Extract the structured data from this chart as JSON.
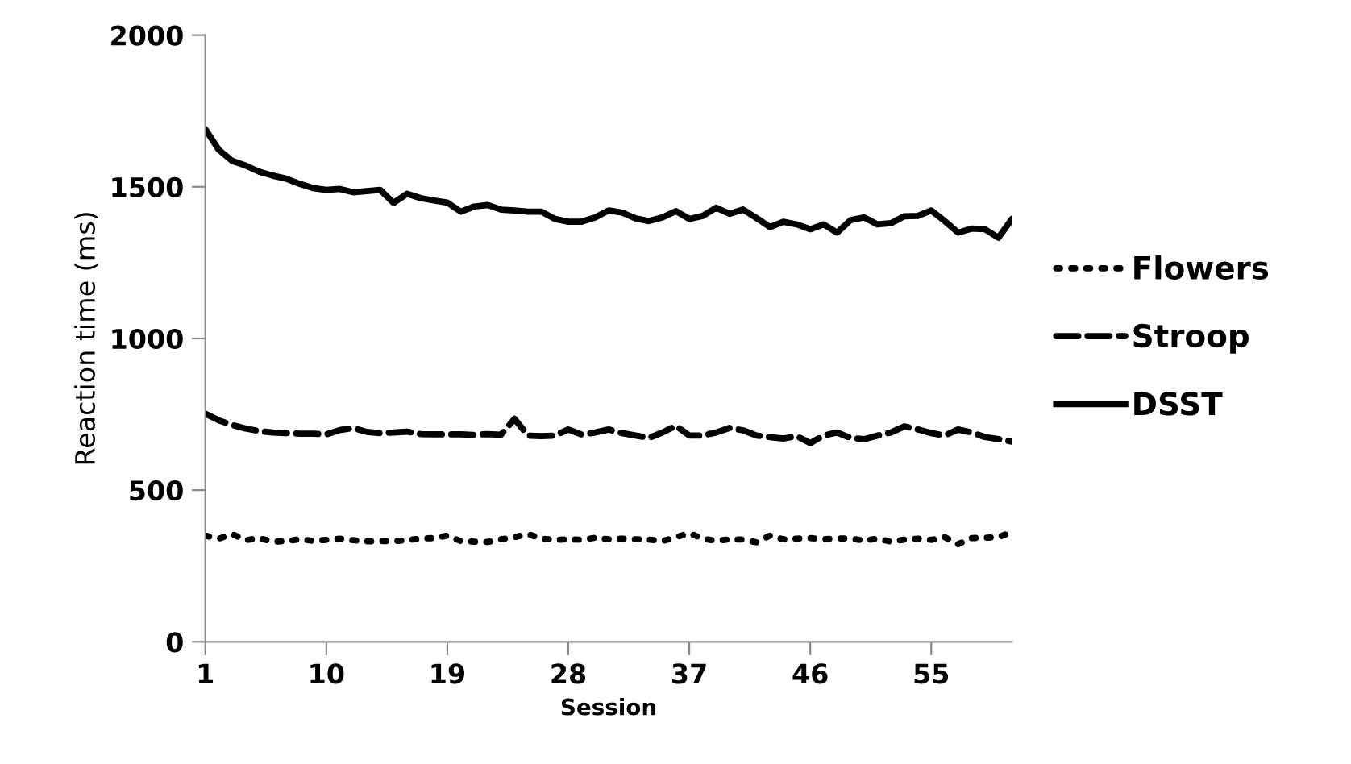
{
  "chart_data": {
    "type": "line",
    "xlabel": "Session",
    "ylabel": "Reaction time (ms)",
    "categories": [
      "1",
      null,
      null,
      null,
      null,
      null,
      null,
      null,
      null,
      "10",
      null,
      null,
      null,
      null,
      null,
      null,
      null,
      null,
      "19",
      null,
      null,
      null,
      null,
      null,
      null,
      null,
      null,
      "28",
      null,
      null,
      null,
      null,
      null,
      null,
      null,
      null,
      "37",
      null,
      null,
      null,
      null,
      null,
      null,
      null,
      null,
      "46",
      null,
      null,
      null,
      null,
      null,
      null,
      null,
      null,
      "55",
      null,
      null,
      null,
      null,
      null,
      null
    ],
    "ylim": [
      0,
      2000
    ],
    "yticks": [
      0,
      500,
      1000,
      1500,
      2000
    ],
    "grid": false,
    "legend": "right",
    "marker": "none",
    "series": [
      {
        "name": "Flowers",
        "color": "#000000",
        "line_style": "dotted",
        "values": [
          350,
          340,
          355,
          335,
          342,
          330,
          332,
          338,
          333,
          336,
          340,
          335,
          331,
          332,
          332,
          335,
          340,
          342,
          350,
          332,
          330,
          329,
          338,
          345,
          355,
          340,
          336,
          338,
          336,
          343,
          338,
          340,
          338,
          337,
          332,
          345,
          358,
          340,
          333,
          338,
          337,
          328,
          350,
          338,
          340,
          342,
          338,
          341,
          340,
          334,
          340,
          330,
          337,
          340,
          336,
          345,
          322,
          342,
          343,
          345,
          362
        ]
      },
      {
        "name": "Stroop",
        "color": "#000000",
        "line_style": "dashed",
        "values": [
          752,
          730,
          715,
          703,
          695,
          690,
          688,
          686,
          686,
          684,
          698,
          705,
          692,
          688,
          690,
          693,
          685,
          684,
          684,
          684,
          682,
          685,
          683,
          735,
          680,
          678,
          680,
          700,
          683,
          690,
          700,
          688,
          680,
          672,
          690,
          712,
          680,
          680,
          690,
          705,
          697,
          680,
          675,
          670,
          678,
          655,
          680,
          690,
          672,
          668,
          680,
          690,
          710,
          700,
          688,
          680,
          700,
          690,
          675,
          668,
          660
        ]
      },
      {
        "name": "DSST",
        "color": "#000000",
        "line_style": "solid",
        "values": [
          1690,
          1622,
          1585,
          1570,
          1550,
          1537,
          1527,
          1510,
          1496,
          1490,
          1493,
          1482,
          1486,
          1490,
          1447,
          1477,
          1463,
          1455,
          1448,
          1418,
          1435,
          1440,
          1425,
          1422,
          1418,
          1418,
          1394,
          1385,
          1385,
          1399,
          1422,
          1415,
          1396,
          1387,
          1399,
          1420,
          1394,
          1404,
          1431,
          1411,
          1425,
          1397,
          1367,
          1385,
          1376,
          1360,
          1376,
          1349,
          1390,
          1399,
          1376,
          1380,
          1403,
          1404,
          1422,
          1387,
          1349,
          1362,
          1360,
          1332,
          1394
        ]
      }
    ]
  }
}
